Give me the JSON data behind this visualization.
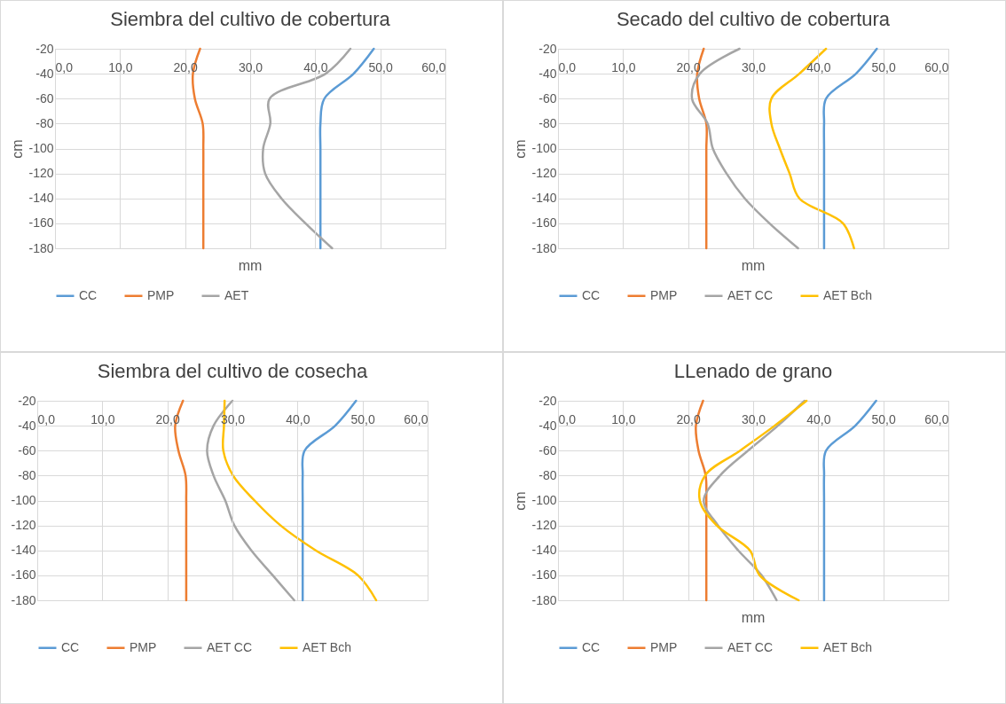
{
  "chart_data": [
    {
      "type": "line",
      "title": "Siembra del cultivo de cobertura",
      "xlabel": "mm",
      "ylabel": "cm",
      "xlim": [
        0,
        60
      ],
      "xticks": [
        {
          "value": 0,
          "label": "0,0"
        },
        {
          "value": 10,
          "label": "10,0"
        },
        {
          "value": 20,
          "label": "20,0"
        },
        {
          "value": 30,
          "label": "30,0"
        },
        {
          "value": 40,
          "label": "40,0"
        },
        {
          "value": 50,
          "label": "50,0"
        },
        {
          "value": 60,
          "label": "60,0"
        }
      ],
      "ylim": [
        -180,
        -20
      ],
      "yticks": [
        -20,
        -40,
        -60,
        -80,
        -100,
        -120,
        -140,
        -160,
        -180
      ],
      "grid": true,
      "legend": "bottom",
      "series": [
        {
          "name": "CC",
          "color": "#5b9bd5",
          "x": [
            49.0,
            45.9,
            41.4,
            40.8,
            40.8,
            40.8,
            40.8,
            40.8,
            40.8
          ],
          "values": [
            -20,
            -40,
            -60,
            -80,
            -100,
            -120,
            -140,
            -160,
            -180
          ]
        },
        {
          "name": "PMP",
          "color": "#ed7d31",
          "x": [
            22.3,
            21.2,
            21.5,
            22.7,
            22.8,
            22.8,
            22.8,
            22.8,
            22.8
          ],
          "values": [
            -20,
            -40,
            -60,
            -80,
            -100,
            -120,
            -140,
            -160,
            -180
          ]
        },
        {
          "name": "AET",
          "color": "#a5a5a5",
          "x": [
            45.4,
            41.6,
            33.0,
            33.1,
            32.0,
            32.3,
            34.8,
            38.5,
            42.6
          ],
          "values": [
            -20,
            -40,
            -60,
            -80,
            -100,
            -120,
            -140,
            -160,
            -180
          ]
        }
      ]
    },
    {
      "type": "line",
      "title": "Secado del cultivo de cobertura",
      "xlabel": "mm",
      "ylabel": "cm",
      "xlim": [
        0,
        60
      ],
      "xticks": [
        {
          "value": 0,
          "label": "0,0"
        },
        {
          "value": 10,
          "label": "10,0"
        },
        {
          "value": 20,
          "label": "20,0"
        },
        {
          "value": 30,
          "label": "30,0"
        },
        {
          "value": 40,
          "label": "40,0"
        },
        {
          "value": 50,
          "label": "50,0"
        },
        {
          "value": 60,
          "label": "60,0"
        }
      ],
      "ylim": [
        -180,
        -20
      ],
      "yticks": [
        -20,
        -40,
        -60,
        -80,
        -100,
        -120,
        -140,
        -160,
        -180
      ],
      "grid": true,
      "legend": "bottom",
      "series": [
        {
          "name": "CC",
          "color": "#5b9bd5",
          "x": [
            49.0,
            45.8,
            41.2,
            40.9,
            40.9,
            40.9,
            40.9,
            40.9,
            40.9
          ],
          "values": [
            -20,
            -40,
            -60,
            -80,
            -100,
            -120,
            -140,
            -160,
            -180
          ]
        },
        {
          "name": "PMP",
          "color": "#ed7d31",
          "x": [
            22.4,
            21.4,
            21.7,
            22.8,
            22.8,
            22.8,
            22.8,
            22.8,
            22.8
          ],
          "values": [
            -20,
            -40,
            -60,
            -80,
            -100,
            -120,
            -140,
            -160,
            -180
          ]
        },
        {
          "name": "AET CC",
          "color": "#a5a5a5",
          "x": [
            27.9,
            21.8,
            20.6,
            23.0,
            23.8,
            25.9,
            28.7,
            32.5,
            36.9
          ],
          "values": [
            -20,
            -40,
            -60,
            -80,
            -100,
            -120,
            -140,
            -160,
            -180
          ]
        },
        {
          "name": "AET Bch",
          "color": "#ffc000",
          "x": [
            41.2,
            37.1,
            32.8,
            32.8,
            34.1,
            35.6,
            37.1,
            43.8,
            45.5
          ],
          "values": [
            -20,
            -40,
            -60,
            -80,
            -100,
            -120,
            -140,
            -160,
            -180
          ]
        }
      ]
    },
    {
      "type": "line",
      "title": "Siembra del cultivo de cosecha",
      "xlim": [
        0,
        60
      ],
      "xticks": [
        {
          "value": 0,
          "label": "0,0"
        },
        {
          "value": 10,
          "label": "10,0"
        },
        {
          "value": 20,
          "label": "20,0"
        },
        {
          "value": 30,
          "label": "30,0"
        },
        {
          "value": 40,
          "label": "40,0"
        },
        {
          "value": 50,
          "label": "50,0"
        },
        {
          "value": 60,
          "label": "60,0"
        }
      ],
      "ylim": [
        -180,
        -20
      ],
      "yticks": [
        -20,
        -40,
        -60,
        -80,
        -100,
        -120,
        -140,
        -160,
        -180
      ],
      "grid": true,
      "legend": "bottom",
      "series": [
        {
          "name": "CC",
          "color": "#5b9bd5",
          "x": [
            49.0,
            45.8,
            41.1,
            40.8,
            40.8,
            40.8,
            40.8,
            40.8,
            40.8
          ],
          "values": [
            -20,
            -40,
            -60,
            -80,
            -100,
            -120,
            -140,
            -160,
            -180
          ]
        },
        {
          "name": "PMP",
          "color": "#ed7d31",
          "x": [
            22.4,
            21.2,
            21.7,
            22.8,
            22.9,
            22.9,
            22.9,
            22.9,
            22.9
          ],
          "values": [
            -20,
            -40,
            -60,
            -80,
            -100,
            -120,
            -140,
            -160,
            -180
          ]
        },
        {
          "name": "AET CC",
          "color": "#a5a5a5",
          "x": [
            30.0,
            27.1,
            26.1,
            27.1,
            28.9,
            30.3,
            32.9,
            36.2,
            39.5
          ],
          "values": [
            -20,
            -40,
            -60,
            -80,
            -100,
            -120,
            -140,
            -160,
            -180
          ]
        },
        {
          "name": "AET Bch",
          "color": "#ffc000",
          "x": [
            28.8,
            28.7,
            28.6,
            30.1,
            33.4,
            37.4,
            42.8,
            49.3,
            52.1
          ],
          "values": [
            -20,
            -40,
            -60,
            -80,
            -100,
            -120,
            -140,
            -160,
            -180
          ]
        }
      ]
    },
    {
      "type": "line",
      "title": "LLenado de grano",
      "xlabel": "mm",
      "ylabel": "cm",
      "xlim": [
        0,
        60
      ],
      "xticks": [
        {
          "value": 0,
          "label": "0,0"
        },
        {
          "value": 10,
          "label": "10,0"
        },
        {
          "value": 20,
          "label": "20,0"
        },
        {
          "value": 30,
          "label": "30,0"
        },
        {
          "value": 40,
          "label": "40,0"
        },
        {
          "value": 50,
          "label": "50,0"
        },
        {
          "value": 60,
          "label": "60,0"
        }
      ],
      "ylim": [
        -180,
        -20
      ],
      "yticks": [
        -20,
        -40,
        -60,
        -80,
        -100,
        -120,
        -140,
        -160,
        -180
      ],
      "grid": true,
      "legend": "bottom",
      "series": [
        {
          "name": "CC",
          "color": "#5b9bd5",
          "x": [
            48.9,
            45.7,
            41.2,
            40.9,
            40.9,
            40.9,
            40.9,
            40.9,
            40.9
          ],
          "values": [
            -20,
            -40,
            -60,
            -80,
            -100,
            -120,
            -140,
            -160,
            -180
          ]
        },
        {
          "name": "PMP",
          "color": "#ed7d31",
          "x": [
            22.3,
            21.2,
            21.6,
            22.7,
            22.8,
            22.8,
            22.8,
            22.8,
            22.8
          ],
          "values": [
            -20,
            -40,
            -60,
            -80,
            -100,
            -120,
            -140,
            -160,
            -180
          ]
        },
        {
          "name": "AET CC",
          "color": "#a5a5a5",
          "x": [
            37.9,
            33.8,
            29.2,
            24.9,
            22.4,
            24.6,
            27.7,
            31.3,
            33.6
          ],
          "values": [
            -20,
            -40,
            -60,
            -80,
            -100,
            -120,
            -140,
            -160,
            -180
          ]
        },
        {
          "name": "AET Bch",
          "color": "#ffc000",
          "x": [
            38.2,
            33.3,
            28.0,
            22.6,
            21.8,
            24.4,
            29.5,
            31.0,
            37.0
          ],
          "values": [
            -20,
            -40,
            -60,
            -80,
            -100,
            -120,
            -140,
            -160,
            -180
          ]
        }
      ]
    }
  ]
}
